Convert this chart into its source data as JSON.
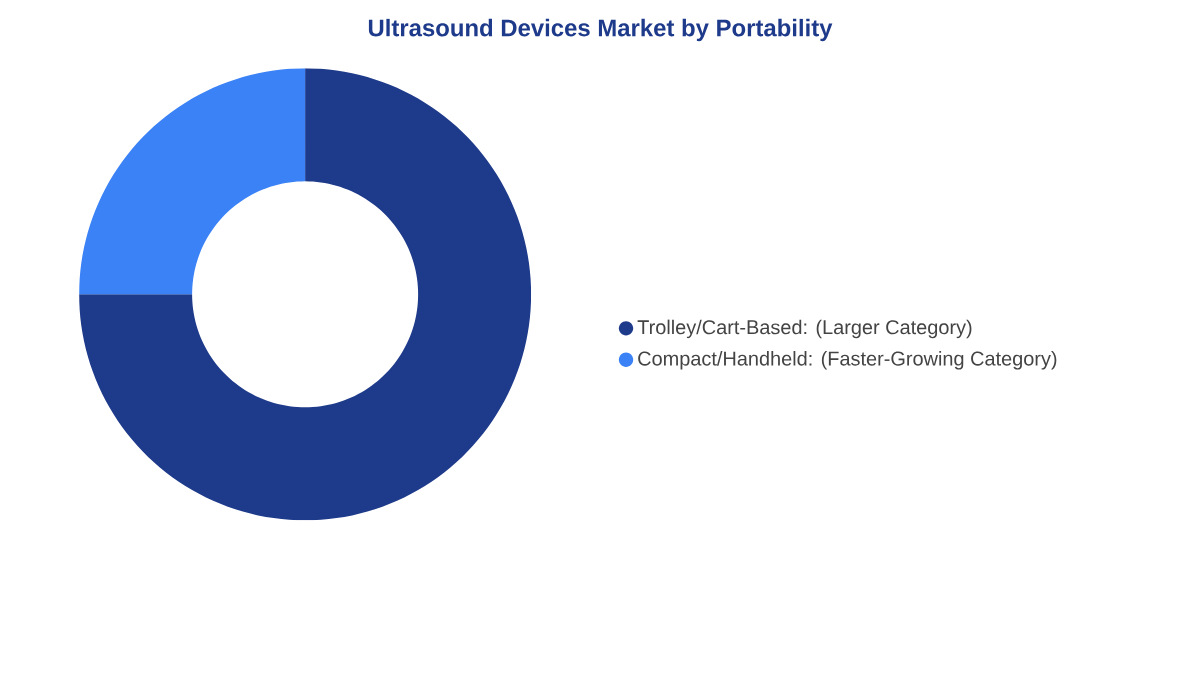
{
  "chart_data": {
    "type": "donut",
    "title": "Ultrasound Devices Market by Portability",
    "categories": [
      "Trolley/Cart-Based:  (Larger Category)",
      "Compact/Handheld:  (Faster-Growing Category)"
    ],
    "values": [
      75,
      25
    ],
    "colors": [
      "#1e3a8a",
      "#3b82f6"
    ],
    "legend": "right"
  }
}
